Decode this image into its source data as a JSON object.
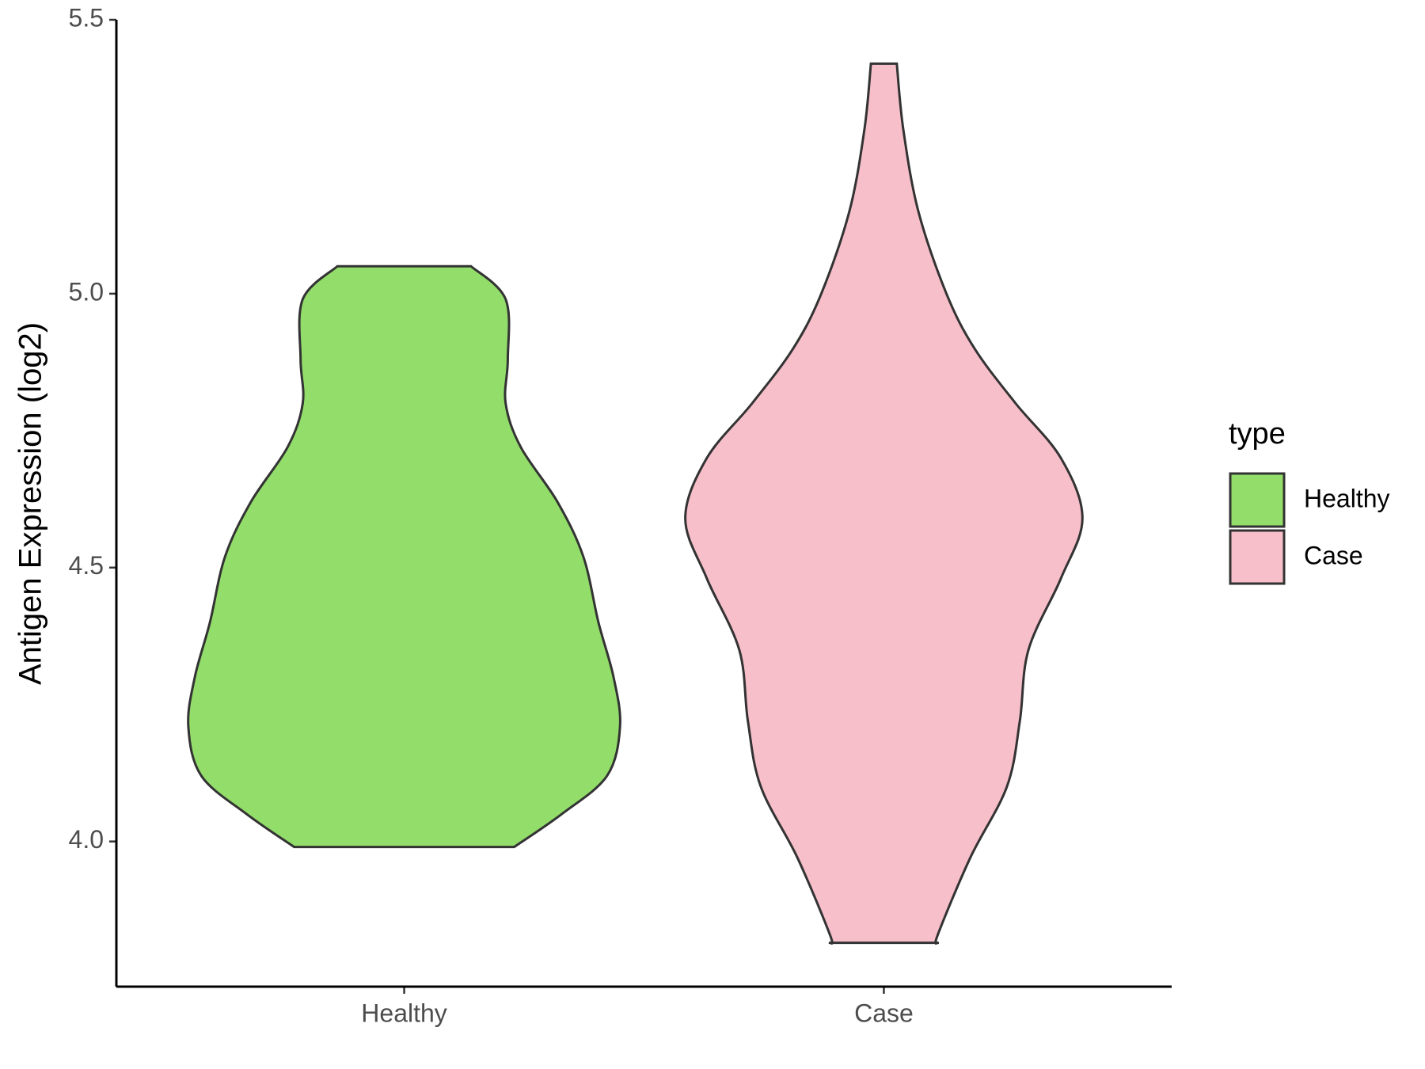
{
  "chart_data": {
    "type": "violin",
    "y_label": "Antigen Expression (log2)",
    "categories": [
      "Healthy",
      "Case"
    ],
    "legend_title": "type",
    "ylim": [
      3.735,
      5.5
    ],
    "yticks": [
      {
        "value": 4.0,
        "label": "4.0"
      },
      4.5,
      {
        "value": 5.0,
        "label": "5.0"
      },
      5.5
    ],
    "series": [
      {
        "name": "Healthy",
        "color": "#93dd6b",
        "y": [
          5.05,
          4.99,
          4.88,
          4.8,
          4.72,
          4.62,
          4.52,
          4.4,
          4.3,
          4.21,
          4.12,
          4.05,
          3.99
        ],
        "density": [
          0.31,
          0.47,
          0.48,
          0.47,
          0.54,
          0.71,
          0.83,
          0.9,
          0.97,
          1.0,
          0.94,
          0.73,
          0.51
        ]
      },
      {
        "name": "Case",
        "color": "#f7bfca",
        "y": [
          5.42,
          5.3,
          5.15,
          5.0,
          4.9,
          4.8,
          4.7,
          4.59,
          4.48,
          4.35,
          4.22,
          4.1,
          3.97,
          3.83,
          3.815
        ],
        "density": [
          0.06,
          0.09,
          0.16,
          0.29,
          0.42,
          0.61,
          0.82,
          0.92,
          0.82,
          0.67,
          0.63,
          0.57,
          0.4,
          0.25,
          0.25
        ]
      }
    ]
  }
}
